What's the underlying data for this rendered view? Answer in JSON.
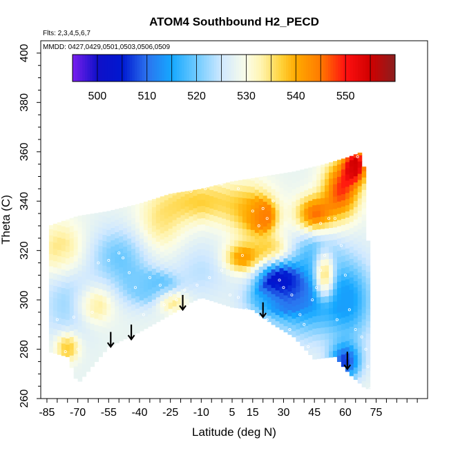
{
  "chart_data": {
    "type": "heatmap",
    "title": "ATOM4 Southbound H2_PECD",
    "subtitle_flights": "Flts: 2,3,4,5,6,7",
    "subtitle_dates": "MMDD: 0427,0429,0501,0503,0506,0509",
    "xlabel": "Latitude (deg N)",
    "ylabel": "Theta (C)",
    "xlim": [
      -88,
      100
    ],
    "ylim": [
      260,
      405
    ],
    "x_ticks": [
      -85,
      -70,
      -55,
      -40,
      -25,
      -10,
      5,
      15,
      30,
      45,
      60,
      75
    ],
    "y_ticks": [
      260,
      280,
      300,
      320,
      340,
      360,
      380,
      400
    ],
    "colorbar": {
      "range": [
        495,
        560
      ],
      "ticks": [
        500,
        510,
        520,
        530,
        540,
        550
      ],
      "stops": [
        {
          "value": 495,
          "color": "#7a1fef"
        },
        {
          "value": 500,
          "color": "#1010c8"
        },
        {
          "value": 505,
          "color": "#0018d0"
        },
        {
          "value": 510,
          "color": "#2b72ee"
        },
        {
          "value": 515,
          "color": "#15a8ff"
        },
        {
          "value": 520,
          "color": "#6fcaff"
        },
        {
          "value": 525,
          "color": "#cfe8ff"
        },
        {
          "value": 530,
          "color": "#fbfde8"
        },
        {
          "value": 533,
          "color": "#fff4b0"
        },
        {
          "value": 537,
          "color": "#ffd23a"
        },
        {
          "value": 540,
          "color": "#ffaa00"
        },
        {
          "value": 545,
          "color": "#ff7a00"
        },
        {
          "value": 550,
          "color": "#ff1010"
        },
        {
          "value": 555,
          "color": "#d00000"
        },
        {
          "value": 560,
          "color": "#8a1e1e"
        }
      ]
    },
    "domain_top": [
      [
        -84,
        330
      ],
      [
        -70,
        334
      ],
      [
        -55,
        336
      ],
      [
        -40,
        339
      ],
      [
        -25,
        343
      ],
      [
        -10,
        345
      ],
      [
        5,
        348
      ],
      [
        20,
        350
      ],
      [
        35,
        352
      ],
      [
        50,
        355
      ],
      [
        62,
        358
      ],
      [
        68,
        360
      ],
      [
        70,
        348
      ],
      [
        72,
        300
      ],
      [
        73,
        264
      ]
    ],
    "domain_bottom": [
      [
        -84,
        279
      ],
      [
        -75,
        277
      ],
      [
        -70,
        266
      ],
      [
        -55,
        281
      ],
      [
        -40,
        287
      ],
      [
        -25,
        294
      ],
      [
        -15,
        299
      ],
      [
        -10,
        301
      ],
      [
        5,
        297
      ],
      [
        15,
        296
      ],
      [
        25,
        290
      ],
      [
        35,
        285
      ],
      [
        45,
        276
      ],
      [
        55,
        277
      ],
      [
        62,
        270
      ],
      [
        70,
        264
      ],
      [
        73,
        264
      ]
    ],
    "field_background": 528,
    "field_features": [
      {
        "x": -75,
        "y": 300,
        "value": 522,
        "sx": 9,
        "sy": 12
      },
      {
        "x": -75,
        "y": 281,
        "value": 540,
        "sx": 4,
        "sy": 4
      },
      {
        "x": -62,
        "y": 298,
        "value": 536,
        "sx": 6,
        "sy": 5
      },
      {
        "x": -78,
        "y": 320,
        "value": 536,
        "sx": 8,
        "sy": 8
      },
      {
        "x": -50,
        "y": 318,
        "value": 520,
        "sx": 10,
        "sy": 8
      },
      {
        "x": -40,
        "y": 305,
        "value": 522,
        "sx": 8,
        "sy": 6
      },
      {
        "x": -30,
        "y": 305,
        "value": 518,
        "sx": 6,
        "sy": 4
      },
      {
        "x": -25,
        "y": 300,
        "value": 538,
        "sx": 5,
        "sy": 3
      },
      {
        "x": -30,
        "y": 330,
        "value": 534,
        "sx": 8,
        "sy": 8
      },
      {
        "x": -10,
        "y": 312,
        "value": 524,
        "sx": 10,
        "sy": 8
      },
      {
        "x": -10,
        "y": 340,
        "value": 537,
        "sx": 14,
        "sy": 6
      },
      {
        "x": 15,
        "y": 335,
        "value": 538,
        "sx": 8,
        "sy": 8
      },
      {
        "x": 20,
        "y": 334,
        "value": 547,
        "sx": 4,
        "sy": 4
      },
      {
        "x": 10,
        "y": 317,
        "value": 542,
        "sx": 6,
        "sy": 4
      },
      {
        "x": 25,
        "y": 320,
        "value": 537,
        "sx": 6,
        "sy": 4
      },
      {
        "x": 28,
        "y": 306,
        "value": 500,
        "sx": 7,
        "sy": 6
      },
      {
        "x": 40,
        "y": 300,
        "value": 514,
        "sx": 12,
        "sy": 10
      },
      {
        "x": 45,
        "y": 320,
        "value": 520,
        "sx": 8,
        "sy": 6
      },
      {
        "x": 50,
        "y": 310,
        "value": 549,
        "sx": 3,
        "sy": 6
      },
      {
        "x": 45,
        "y": 335,
        "value": 545,
        "sx": 6,
        "sy": 5
      },
      {
        "x": 58,
        "y": 345,
        "value": 548,
        "sx": 6,
        "sy": 8
      },
      {
        "x": 65,
        "y": 355,
        "value": 553,
        "sx": 4,
        "sy": 5
      },
      {
        "x": 62,
        "y": 300,
        "value": 516,
        "sx": 8,
        "sy": 12
      },
      {
        "x": 60,
        "y": 275,
        "value": 508,
        "sx": 5,
        "sy": 5
      },
      {
        "x": 20,
        "y": 300,
        "value": 523,
        "sx": 8,
        "sy": 4
      }
    ],
    "sample_points": [
      [
        -80,
        292
      ],
      [
        -72,
        293
      ],
      [
        -70,
        280
      ],
      [
        -76,
        279
      ],
      [
        -63,
        295
      ],
      [
        -55,
        316
      ],
      [
        -50,
        319
      ],
      [
        -48,
        317
      ],
      [
        -45,
        311
      ],
      [
        -42,
        305
      ],
      [
        -35,
        309
      ],
      [
        -30,
        306
      ],
      [
        -25,
        302
      ],
      [
        -22,
        300
      ],
      [
        -18,
        304
      ],
      [
        -12,
        306
      ],
      [
        -6,
        309
      ],
      [
        0,
        312
      ],
      [
        4,
        302
      ],
      [
        8,
        301
      ],
      [
        10,
        318
      ],
      [
        15,
        336
      ],
      [
        20,
        337
      ],
      [
        22,
        333
      ],
      [
        25,
        340
      ],
      [
        18,
        330
      ],
      [
        8,
        345
      ],
      [
        0,
        347
      ],
      [
        -8,
        345
      ],
      [
        -15,
        344
      ],
      [
        28,
        308
      ],
      [
        30,
        305
      ],
      [
        34,
        302
      ],
      [
        38,
        294
      ],
      [
        40,
        290
      ],
      [
        44,
        300
      ],
      [
        46,
        305
      ],
      [
        48,
        312
      ],
      [
        50,
        318
      ],
      [
        52,
        333
      ],
      [
        55,
        333
      ],
      [
        48,
        331
      ],
      [
        58,
        322
      ],
      [
        62,
        296
      ],
      [
        65,
        288
      ],
      [
        68,
        285
      ],
      [
        70,
        280
      ],
      [
        71,
        273
      ],
      [
        72,
        264
      ],
      [
        66,
        358
      ],
      [
        -60,
        315
      ],
      [
        -38,
        294
      ],
      [
        -28,
        298
      ],
      [
        -5,
        297
      ],
      [
        12,
        296
      ],
      [
        22,
        292
      ],
      [
        33,
        288
      ],
      [
        42,
        281
      ],
      [
        56,
        292
      ],
      [
        60,
        310
      ]
    ],
    "arrows": [
      {
        "x": -54,
        "y_top": 287,
        "y_bottom": 281
      },
      {
        "x": -44,
        "y_top": 290,
        "y_bottom": 284
      },
      {
        "x": -19,
        "y_top": 302,
        "y_bottom": 296
      },
      {
        "x": 20,
        "y_top": 299,
        "y_bottom": 293
      },
      {
        "x": 61,
        "y_top": 279,
        "y_bottom": 272
      }
    ]
  }
}
